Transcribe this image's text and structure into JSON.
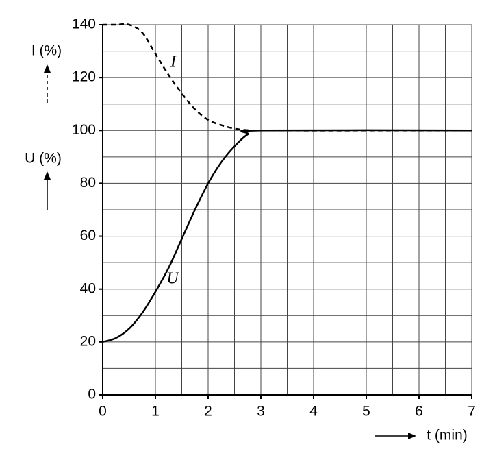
{
  "chart_data": {
    "type": "line",
    "x": [
      0,
      0.25,
      0.5,
      0.75,
      1,
      1.25,
      1.5,
      1.75,
      2,
      2.25,
      2.5,
      2.75,
      3,
      7
    ],
    "series": [
      {
        "name": "U",
        "color": "#000000",
        "style": "solid",
        "values": [
          20,
          21.5,
          25,
          31,
          39,
          48,
          59,
          70,
          80,
          88,
          94,
          98.5,
          100,
          100
        ]
      },
      {
        "name": "I",
        "color": "#000000",
        "style": "dashed",
        "values": [
          140,
          140,
          140,
          137,
          129,
          121,
          114,
          108,
          104,
          102,
          100.7,
          100.1,
          100,
          100
        ]
      }
    ],
    "xlim": [
      0,
      7
    ],
    "xticks": [
      0,
      1,
      2,
      3,
      4,
      5,
      6,
      7
    ],
    "minor_xticks": [
      0.5,
      1.5,
      2.5,
      3.5,
      4.5,
      5.5,
      6.5
    ],
    "ylim": [
      0,
      140
    ],
    "yticks": [
      0,
      20,
      40,
      60,
      80,
      100,
      120,
      140
    ],
    "minor_yticks": [
      10,
      30,
      50,
      70,
      90,
      110,
      130
    ],
    "grid": true,
    "y_label_top": "I (%)",
    "y_label_bottom": "U (%)",
    "x_label": "t (min)",
    "annotations": [
      "I",
      "U"
    ]
  }
}
